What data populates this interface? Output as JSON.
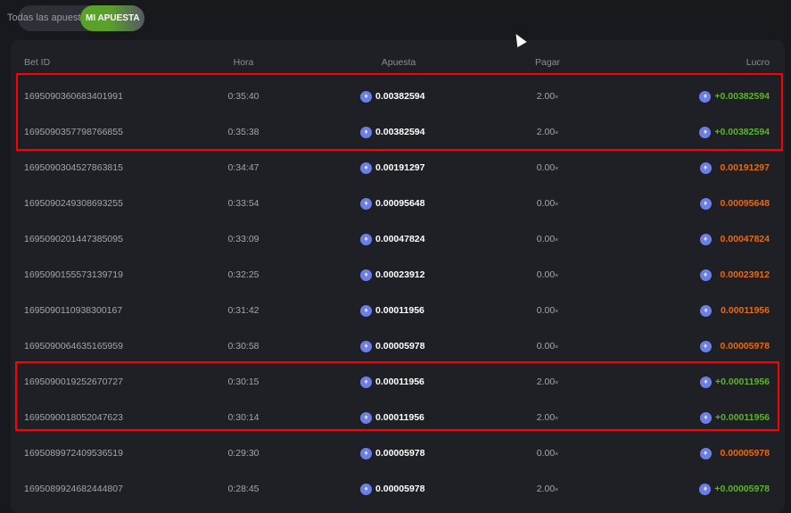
{
  "toggle": {
    "all_label": "Todas las apuestas",
    "mine_label": "MI APUESTA"
  },
  "table": {
    "headers": [
      "Bet ID",
      "Hora",
      "Apuesta",
      "Pagar",
      "Lucro"
    ],
    "rows": [
      {
        "id": "1695090360683401991",
        "time": "0:35:40",
        "bet": "0.00382594",
        "payout": "2.00",
        "profit": "+0.00382594",
        "win": true
      },
      {
        "id": "1695090357798766855",
        "time": "0:35:38",
        "bet": "0.00382594",
        "payout": "2.00",
        "profit": "+0.00382594",
        "win": true
      },
      {
        "id": "1695090304527863815",
        "time": "0:34:47",
        "bet": "0.00191297",
        "payout": "0.00",
        "profit": "0.00191297",
        "win": false
      },
      {
        "id": "1695090249308693255",
        "time": "0:33:54",
        "bet": "0.00095648",
        "payout": "0.00",
        "profit": "0.00095648",
        "win": false
      },
      {
        "id": "1695090201447385095",
        "time": "0:33:09",
        "bet": "0.00047824",
        "payout": "0.00",
        "profit": "0.00047824",
        "win": false
      },
      {
        "id": "1695090155573139719",
        "time": "0:32:25",
        "bet": "0.00023912",
        "payout": "0.00",
        "profit": "0.00023912",
        "win": false
      },
      {
        "id": "1695090110938300167",
        "time": "0:31:42",
        "bet": "0.00011956",
        "payout": "0.00",
        "profit": "0.00011956",
        "win": false
      },
      {
        "id": "1695090064635165959",
        "time": "0:30:58",
        "bet": "0.00005978",
        "payout": "0.00",
        "profit": "0.00005978",
        "win": false
      },
      {
        "id": "1695090019252670727",
        "time": "0:30:15",
        "bet": "0.00011956",
        "payout": "2.00",
        "profit": "+0.00011956",
        "win": true
      },
      {
        "id": "1695090018052047623",
        "time": "0:30:14",
        "bet": "0.00011956",
        "payout": "2.00",
        "profit": "+0.00011956",
        "win": true
      },
      {
        "id": "1695089972409536519",
        "time": "0:29:30",
        "bet": "0.00005978",
        "payout": "0.00",
        "profit": "0.00005978",
        "win": false
      },
      {
        "id": "1695089924682444807",
        "time": "0:28:45",
        "bet": "0.00005978",
        "payout": "2.00",
        "profit": "+0.00005978",
        "win": true
      }
    ],
    "multiplier_suffix": "×",
    "coin_icon": "ethereum-icon"
  },
  "colors": {
    "win": "#5db32a",
    "lose": "#e86a12",
    "highlight": "#ff0000",
    "accent": "#5aa12a"
  }
}
